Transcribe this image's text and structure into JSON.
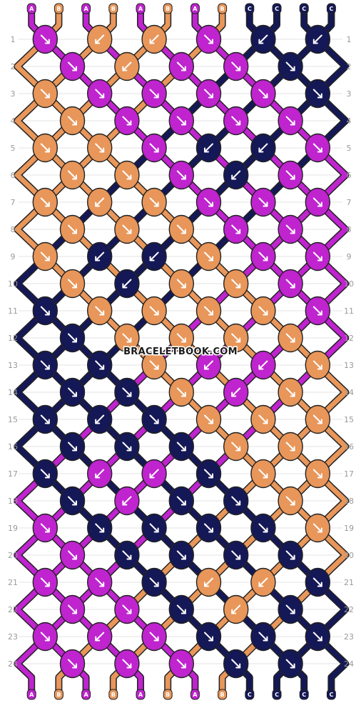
{
  "watermark": "BRACELETBOOK.COM",
  "colors": {
    "A": "#bf24cf",
    "B": "#e8965a",
    "C": "#151856"
  },
  "strands_top": [
    "A",
    "B",
    "A",
    "B",
    "A",
    "B",
    "A",
    "B",
    "C",
    "C",
    "C",
    "C"
  ],
  "strands_bottom": [
    "A",
    "B",
    "A",
    "B",
    "A",
    "B",
    "A",
    "B",
    "C",
    "C",
    "C",
    "C"
  ],
  "row_numbers": [
    "1",
    "2",
    "3",
    "4",
    "5",
    "6",
    "7",
    "8",
    "9",
    "10",
    "11",
    "12",
    "13",
    "14",
    "15",
    "16",
    "17",
    "18",
    "19",
    "20",
    "21",
    "22",
    "23",
    "24"
  ],
  "knot_rows": [
    [
      {
        "c": "A",
        "d": "se"
      },
      {
        "c": "B",
        "d": "sw"
      },
      {
        "c": "B",
        "d": "sw"
      },
      {
        "c": "A",
        "d": "se"
      },
      {
        "c": "C",
        "d": "sw"
      },
      {
        "c": "C",
        "d": "sw"
      }
    ],
    [
      {
        "c": "A",
        "d": "se"
      },
      {
        "c": "B",
        "d": "sw"
      },
      {
        "c": "A",
        "d": "se"
      },
      {
        "c": "A",
        "d": "se"
      },
      {
        "c": "C",
        "d": "se"
      }
    ],
    [
      {
        "c": "B",
        "d": "se"
      },
      {
        "c": "A",
        "d": "se"
      },
      {
        "c": "A",
        "d": "se"
      },
      {
        "c": "A",
        "d": "se"
      },
      {
        "c": "A",
        "d": "se"
      },
      {
        "c": "C",
        "d": "se"
      }
    ],
    [
      {
        "c": "B",
        "d": "se"
      },
      {
        "c": "A",
        "d": "se"
      },
      {
        "c": "A",
        "d": "se"
      },
      {
        "c": "A",
        "d": "se"
      },
      {
        "c": "A",
        "d": "se"
      }
    ],
    [
      {
        "c": "B",
        "d": "se"
      },
      {
        "c": "B",
        "d": "se"
      },
      {
        "c": "A",
        "d": "se"
      },
      {
        "c": "C",
        "d": "sw"
      },
      {
        "c": "C",
        "d": "sw"
      },
      {
        "c": "A",
        "d": "se"
      }
    ],
    [
      {
        "c": "B",
        "d": "se"
      },
      {
        "c": "B",
        "d": "se"
      },
      {
        "c": "A",
        "d": "se"
      },
      {
        "c": "C",
        "d": "sw"
      },
      {
        "c": "A",
        "d": "se"
      }
    ],
    [
      {
        "c": "B",
        "d": "se"
      },
      {
        "c": "B",
        "d": "sw"
      },
      {
        "c": "B",
        "d": "se"
      },
      {
        "c": "A",
        "d": "se"
      },
      {
        "c": "A",
        "d": "se"
      },
      {
        "c": "A",
        "d": "se"
      }
    ],
    [
      {
        "c": "B",
        "d": "se"
      },
      {
        "c": "B",
        "d": "se"
      },
      {
        "c": "B",
        "d": "se"
      },
      {
        "c": "A",
        "d": "se"
      },
      {
        "c": "A",
        "d": "se"
      }
    ],
    [
      {
        "c": "B",
        "d": "se"
      },
      {
        "c": "C",
        "d": "sw"
      },
      {
        "c": "C",
        "d": "sw"
      },
      {
        "c": "B",
        "d": "se"
      },
      {
        "c": "A",
        "d": "se"
      },
      {
        "c": "A",
        "d": "se"
      }
    ],
    [
      {
        "c": "B",
        "d": "se"
      },
      {
        "c": "C",
        "d": "sw"
      },
      {
        "c": "B",
        "d": "se"
      },
      {
        "c": "B",
        "d": "se"
      },
      {
        "c": "A",
        "d": "se"
      }
    ],
    [
      {
        "c": "C",
        "d": "se"
      },
      {
        "c": "B",
        "d": "se"
      },
      {
        "c": "B",
        "d": "se"
      },
      {
        "c": "B",
        "d": "se"
      },
      {
        "c": "B",
        "d": "se"
      },
      {
        "c": "A",
        "d": "se"
      }
    ],
    [
      {
        "c": "C",
        "d": "se"
      },
      {
        "c": "B",
        "d": "se"
      },
      {
        "c": "B",
        "d": "se"
      },
      {
        "c": "B",
        "d": "se"
      },
      {
        "c": "B",
        "d": "se"
      }
    ],
    [
      {
        "c": "C",
        "d": "se"
      },
      {
        "c": "C",
        "d": "se"
      },
      {
        "c": "B",
        "d": "se"
      },
      {
        "c": "A",
        "d": "sw"
      },
      {
        "c": "A",
        "d": "sw"
      },
      {
        "c": "B",
        "d": "se"
      }
    ],
    [
      {
        "c": "C",
        "d": "se"
      },
      {
        "c": "C",
        "d": "se"
      },
      {
        "c": "B",
        "d": "se"
      },
      {
        "c": "A",
        "d": "sw"
      },
      {
        "c": "B",
        "d": "se"
      }
    ],
    [
      {
        "c": "C",
        "d": "se"
      },
      {
        "c": "C",
        "d": "sw"
      },
      {
        "c": "C",
        "d": "se"
      },
      {
        "c": "B",
        "d": "se"
      },
      {
        "c": "B",
        "d": "se"
      },
      {
        "c": "B",
        "d": "se"
      }
    ],
    [
      {
        "c": "C",
        "d": "se"
      },
      {
        "c": "C",
        "d": "se"
      },
      {
        "c": "C",
        "d": "se"
      },
      {
        "c": "B",
        "d": "se"
      },
      {
        "c": "B",
        "d": "se"
      }
    ],
    [
      {
        "c": "C",
        "d": "se"
      },
      {
        "c": "A",
        "d": "sw"
      },
      {
        "c": "A",
        "d": "sw"
      },
      {
        "c": "C",
        "d": "se"
      },
      {
        "c": "B",
        "d": "se"
      },
      {
        "c": "B",
        "d": "se"
      }
    ],
    [
      {
        "c": "C",
        "d": "se"
      },
      {
        "c": "A",
        "d": "sw"
      },
      {
        "c": "C",
        "d": "se"
      },
      {
        "c": "C",
        "d": "se"
      },
      {
        "c": "B",
        "d": "se"
      }
    ],
    [
      {
        "c": "A",
        "d": "se"
      },
      {
        "c": "C",
        "d": "se"
      },
      {
        "c": "C",
        "d": "se"
      },
      {
        "c": "C",
        "d": "se"
      },
      {
        "c": "C",
        "d": "se"
      },
      {
        "c": "B",
        "d": "se"
      }
    ],
    [
      {
        "c": "A",
        "d": "se"
      },
      {
        "c": "C",
        "d": "se"
      },
      {
        "c": "C",
        "d": "se"
      },
      {
        "c": "C",
        "d": "se"
      },
      {
        "c": "C",
        "d": "se"
      }
    ],
    [
      {
        "c": "A",
        "d": "se"
      },
      {
        "c": "A",
        "d": "se"
      },
      {
        "c": "C",
        "d": "se"
      },
      {
        "c": "B",
        "d": "sw"
      },
      {
        "c": "B",
        "d": "sw"
      },
      {
        "c": "C",
        "d": "se"
      }
    ],
    [
      {
        "c": "A",
        "d": "se"
      },
      {
        "c": "A",
        "d": "se"
      },
      {
        "c": "C",
        "d": "se"
      },
      {
        "c": "B",
        "d": "sw"
      },
      {
        "c": "C",
        "d": "se"
      }
    ],
    [
      {
        "c": "A",
        "d": "se"
      },
      {
        "c": "A",
        "d": "sw"
      },
      {
        "c": "A",
        "d": "se"
      },
      {
        "c": "C",
        "d": "se"
      },
      {
        "c": "C",
        "d": "se"
      },
      {
        "c": "C",
        "d": "se"
      }
    ],
    [
      {
        "c": "A",
        "d": "se"
      },
      {
        "c": "A",
        "d": "se"
      },
      {
        "c": "A",
        "d": "se"
      },
      {
        "c": "C",
        "d": "se"
      },
      {
        "c": "C",
        "d": "se"
      }
    ]
  ]
}
